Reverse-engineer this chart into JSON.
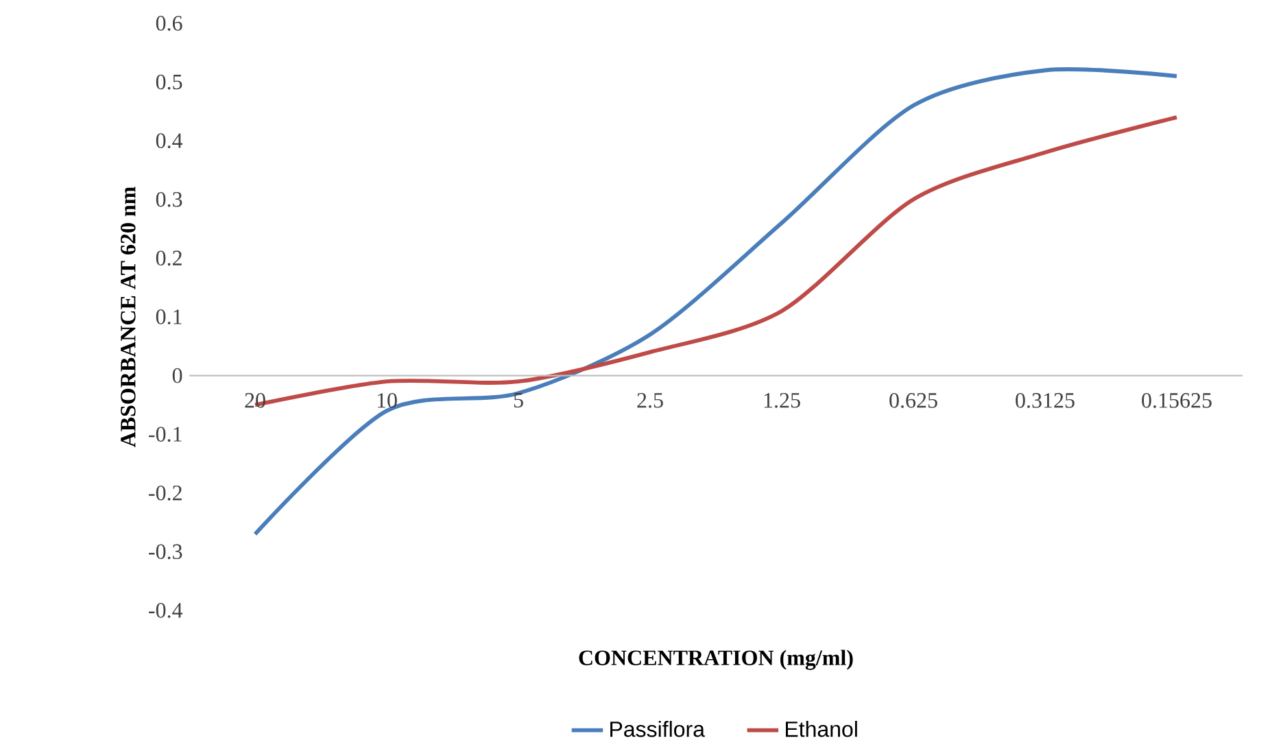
{
  "chart_data": {
    "type": "line",
    "xlabel": "CONCENTRATION (mg/ml)",
    "ylabel": "ABSORBANCE AT 620 nm",
    "categories": [
      "20",
      "10",
      "5",
      "2.5",
      "1.25",
      "0.625",
      "0.3125",
      "0.15625"
    ],
    "series": [
      {
        "name": "Passiflora",
        "color": "#4a7ebb",
        "values": [
          -0.27,
          -0.06,
          -0.03,
          0.07,
          0.26,
          0.46,
          0.52,
          0.51
        ]
      },
      {
        "name": "Ethanol",
        "color": "#be4b48",
        "values": [
          -0.05,
          -0.01,
          -0.01,
          0.04,
          0.11,
          0.3,
          0.38,
          0.44
        ]
      }
    ],
    "ylim": [
      -0.4,
      0.6
    ],
    "yticks": [
      -0.4,
      -0.3,
      -0.2,
      -0.1,
      0,
      0.1,
      0.2,
      0.3,
      0.4,
      0.5,
      0.6
    ],
    "grid": false,
    "legend": "bottom",
    "marker": "none",
    "line_style": "solid"
  }
}
